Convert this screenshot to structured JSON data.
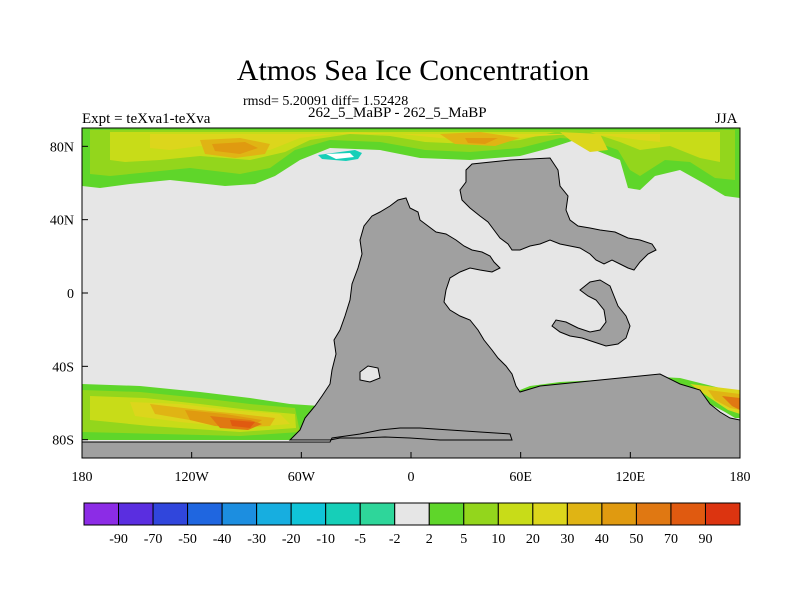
{
  "title": "Atmos Sea Ice Concentration",
  "stats_line": "rmsd= 5.20091 diff= 1.52428",
  "experiment_label": "Expt = teXva1-teXva",
  "difference_label": "262_5_MaBP - 262_5_MaBP",
  "season_label": "JJA",
  "colors": {
    "land": "#a0a0a0",
    "near_zero": "#e6e6e6",
    "frame": "#000000"
  },
  "chart_data": {
    "type": "heatmap",
    "title": "Atmos Sea Ice Concentration",
    "projection": "cylindrical equidistant",
    "x_range": [
      -180,
      180
    ],
    "y_range": [
      -90,
      90
    ],
    "x_ticks": [
      {
        "value": -180,
        "label": "180"
      },
      {
        "value": -120,
        "label": "120W"
      },
      {
        "value": -60,
        "label": "60W"
      },
      {
        "value": 0,
        "label": "0"
      },
      {
        "value": 60,
        "label": "60E"
      },
      {
        "value": 120,
        "label": "120E"
      },
      {
        "value": 180,
        "label": "180"
      }
    ],
    "y_ticks": [
      {
        "value": 80,
        "label": "80N"
      },
      {
        "value": 40,
        "label": "40N"
      },
      {
        "value": 0,
        "label": "0"
      },
      {
        "value": -40,
        "label": "40S"
      },
      {
        "value": -80,
        "label": "80S"
      }
    ],
    "colorbar": {
      "levels": [
        "-90",
        "-70",
        "-50",
        "-40",
        "-30",
        "-20",
        "-10",
        "-5",
        "-2",
        "2",
        "5",
        "10",
        "20",
        "30",
        "40",
        "50",
        "70",
        "90"
      ],
      "colors": [
        "#8c2ce6",
        "#5a2ee0",
        "#3046dc",
        "#1f66e0",
        "#1c8ee0",
        "#17aee0",
        "#10c4d8",
        "#16cfb8",
        "#2ed69a",
        "#e6e6e6",
        "#5fd62a",
        "#93d61c",
        "#c8dc18",
        "#dcd61c",
        "#e0b414",
        "#e09a10",
        "#e07812",
        "#e05a10",
        "#dc3410"
      ]
    },
    "regions": [
      {
        "name": "arctic",
        "lat_range": [
          60,
          90
        ],
        "lon_range": [
          -180,
          180
        ],
        "value_range": [
          5,
          50
        ],
        "peak_lon": [
          -120,
          -60
        ],
        "peak_value": 50
      },
      {
        "name": "arctic-local",
        "lat_range": [
          75,
          80
        ],
        "lon_range": [
          -50,
          -30
        ],
        "value_range": [
          -20,
          -5
        ]
      },
      {
        "name": "southern-ocean",
        "lat_range": [
          -85,
          -50
        ],
        "lon_range": [
          -180,
          -50
        ],
        "value_range": [
          5,
          70
        ],
        "peak_lon": [
          -100,
          -70
        ],
        "peak_value": 70
      },
      {
        "name": "southern-ocean-east",
        "lat_range": [
          -62,
          -55
        ],
        "lon_range": [
          60,
          180
        ],
        "value_range": [
          5,
          30
        ]
      }
    ]
  }
}
